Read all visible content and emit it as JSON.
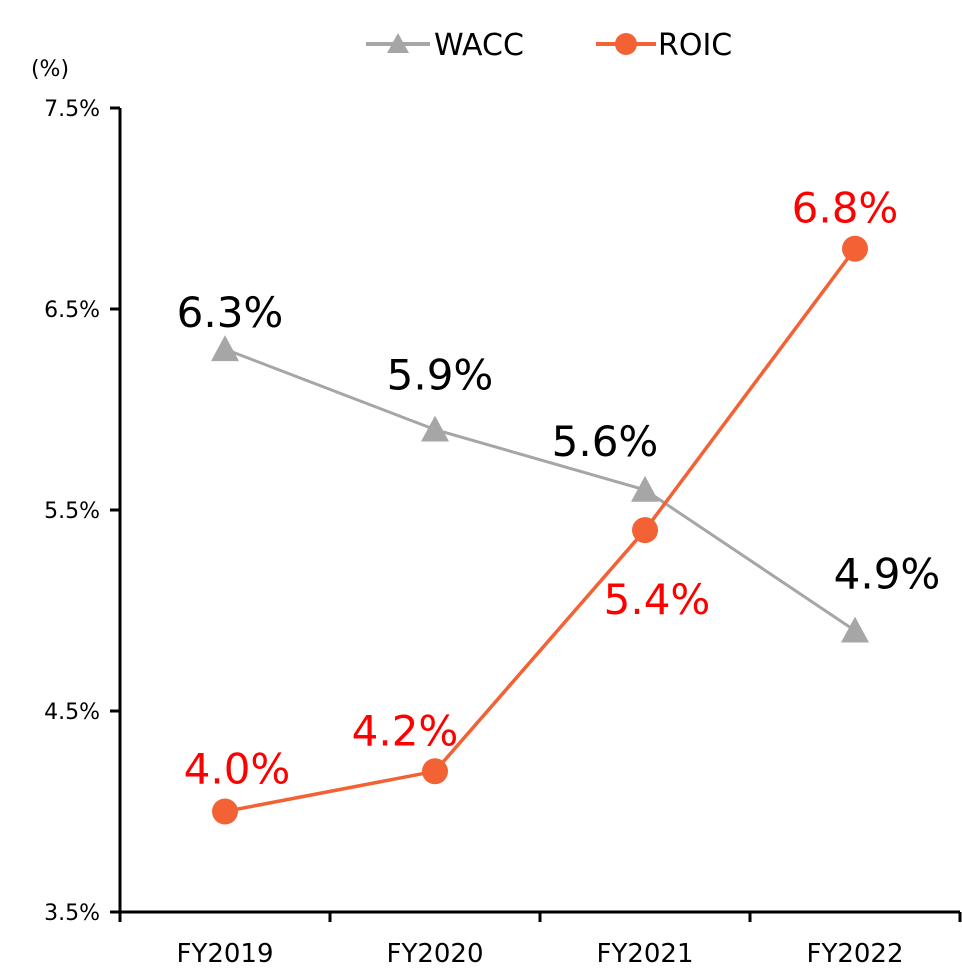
{
  "chart_data": {
    "type": "line",
    "title": "",
    "xlabel": "",
    "ylabel": "",
    "y_unit_label": "(%)",
    "categories": [
      "FY2019",
      "FY2020",
      "FY2021",
      "FY2022"
    ],
    "ylim": [
      3.5,
      7.5
    ],
    "y_ticks": [
      3.5,
      4.5,
      5.5,
      6.5,
      7.5
    ],
    "y_tick_labels": [
      "3.5%",
      "4.5%",
      "5.5%",
      "6.5%",
      "7.5%"
    ],
    "grid": false,
    "legend_position": "top-center",
    "series": [
      {
        "name": "WACC",
        "values": [
          6.3,
          5.9,
          5.6,
          4.9
        ],
        "data_labels": [
          "6.3%",
          "5.9%",
          "5.6%",
          "4.9%"
        ],
        "color": "#a6a6a6",
        "label_color": "#000000",
        "marker": "triangle"
      },
      {
        "name": "ROIC",
        "values": [
          4.0,
          4.2,
          5.4,
          6.8
        ],
        "data_labels": [
          "4.0%",
          "4.2%",
          "5.4%",
          "6.8%"
        ],
        "color": "#f26235",
        "label_color": "#ff0000",
        "marker": "circle"
      }
    ]
  }
}
